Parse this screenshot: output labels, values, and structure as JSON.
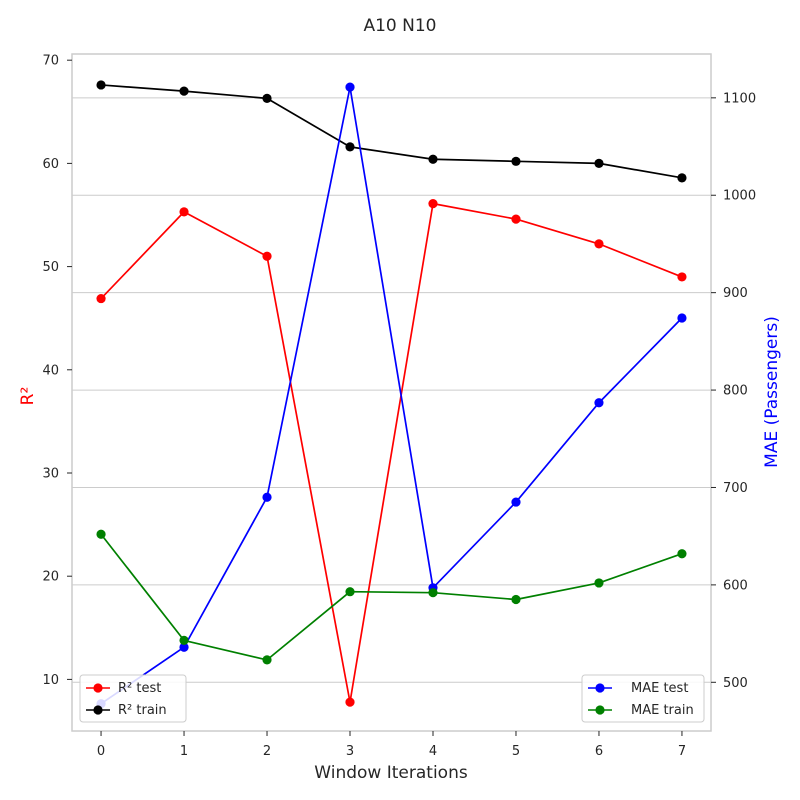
{
  "chart_data": {
    "type": "line",
    "title": "A10 N10",
    "xlabel": "Window Iterations",
    "ylabel_left": "R²",
    "ylabel_right": "MAE (Passengers)",
    "x": [
      0,
      1,
      2,
      3,
      4,
      5,
      6,
      7
    ],
    "xlim": [
      -0.35,
      7.35
    ],
    "ylim_left": [
      5,
      70.6
    ],
    "ylim_right": [
      450,
      1145
    ],
    "yticks_left": [
      10,
      20,
      30,
      40,
      50,
      60,
      70
    ],
    "yticks_right": [
      500,
      600,
      700,
      800,
      900,
      1000,
      1100
    ],
    "grid": "on (horizontal, right axis)",
    "left_series": [
      {
        "name": "R² test",
        "color": "#ff0000",
        "values": [
          46.9,
          55.3,
          51.0,
          7.8,
          56.1,
          54.6,
          52.2,
          49.0
        ]
      },
      {
        "name": "R² train",
        "color": "#000000",
        "values": [
          67.6,
          67.0,
          66.3,
          61.6,
          60.4,
          60.2,
          60.0,
          58.6
        ]
      }
    ],
    "right_series": [
      {
        "name": "MAE test",
        "color": "#0000ff",
        "values": [
          478,
          536,
          690,
          1111,
          597,
          685,
          787,
          874
        ]
      },
      {
        "name": "MAE train",
        "color": "#008000",
        "values": [
          652,
          543,
          523,
          593,
          592,
          585,
          602,
          632
        ]
      }
    ],
    "legend_left": "lower-left",
    "legend_right": "lower-right",
    "colors": {
      "left_axis_label": "#ff0000",
      "right_axis_label": "#0000ff",
      "grid": "#cccccc",
      "frame": "#cccccc",
      "text": "#262626"
    }
  }
}
